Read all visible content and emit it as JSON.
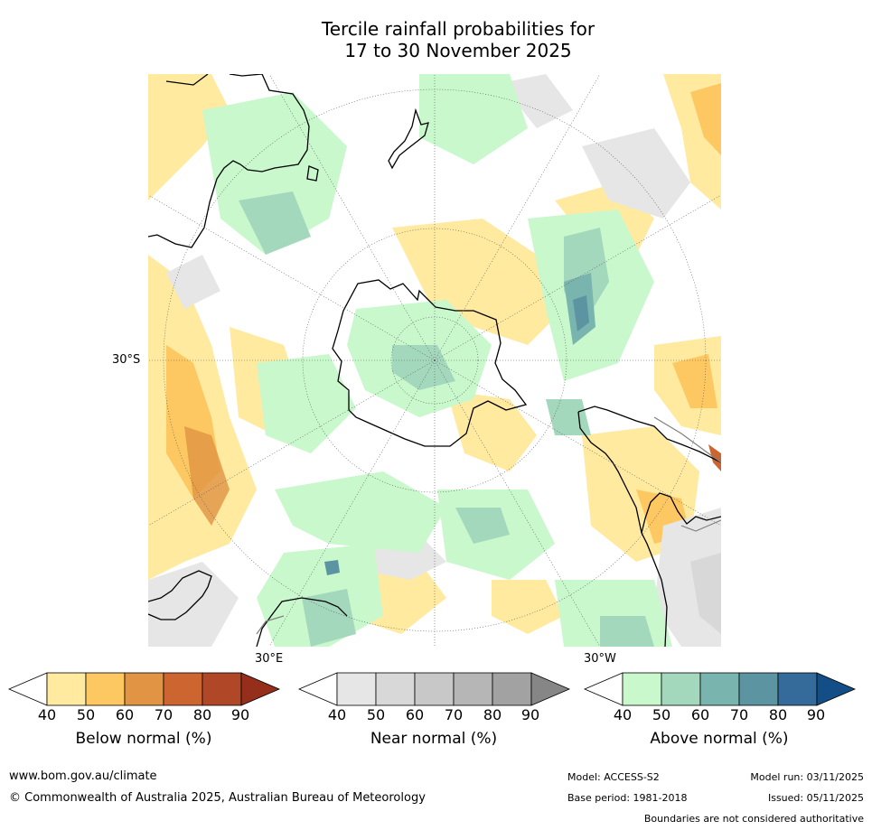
{
  "title_line1": "Tercile rainfall probabilities for",
  "title_line2": "17 to 30 November 2025",
  "map": {
    "projection": "south polar stereographic",
    "lat_label": "30°S",
    "lon_label_bottom_left": "30°E",
    "lon_label_bottom_right": "30°W"
  },
  "colorbars": [
    {
      "label": "Below normal (%)",
      "ticks": [
        "40",
        "50",
        "60",
        "70",
        "80",
        "90"
      ],
      "colors": [
        "#ffffff",
        "#ffeaa0",
        "#fdc862",
        "#e09444",
        "#cc6530",
        "#b04828",
        "#962e1c"
      ]
    },
    {
      "label": "Near normal (%)",
      "ticks": [
        "40",
        "50",
        "60",
        "70",
        "80",
        "90"
      ],
      "colors": [
        "#ffffff",
        "#e6e6e6",
        "#d8d8d8",
        "#c8c8c8",
        "#b6b6b6",
        "#a2a2a2",
        "#868686"
      ]
    },
    {
      "label": "Above normal (%)",
      "ticks": [
        "40",
        "50",
        "60",
        "70",
        "80",
        "90"
      ],
      "colors": [
        "#ffffff",
        "#c8f8cc",
        "#a4d8bc",
        "#7ab4ae",
        "#5c94a2",
        "#346b9a",
        "#134f86"
      ]
    }
  ],
  "footer": {
    "website": "www.bom.gov.au/climate",
    "copyright": "© Commonwealth of Australia 2025, Australian Bureau of Meteorology",
    "model": "Model: ACCESS-S2",
    "model_run": "Model run: 03/11/2025",
    "base_period": "Base period: 1981-2018",
    "issued": "Issued: 05/11/2025",
    "disclaimer": "Boundaries are not considered authoritative"
  },
  "colors": {
    "below": "#fdc862",
    "near": "#d8d8d8",
    "above": "#c8f8cc"
  }
}
